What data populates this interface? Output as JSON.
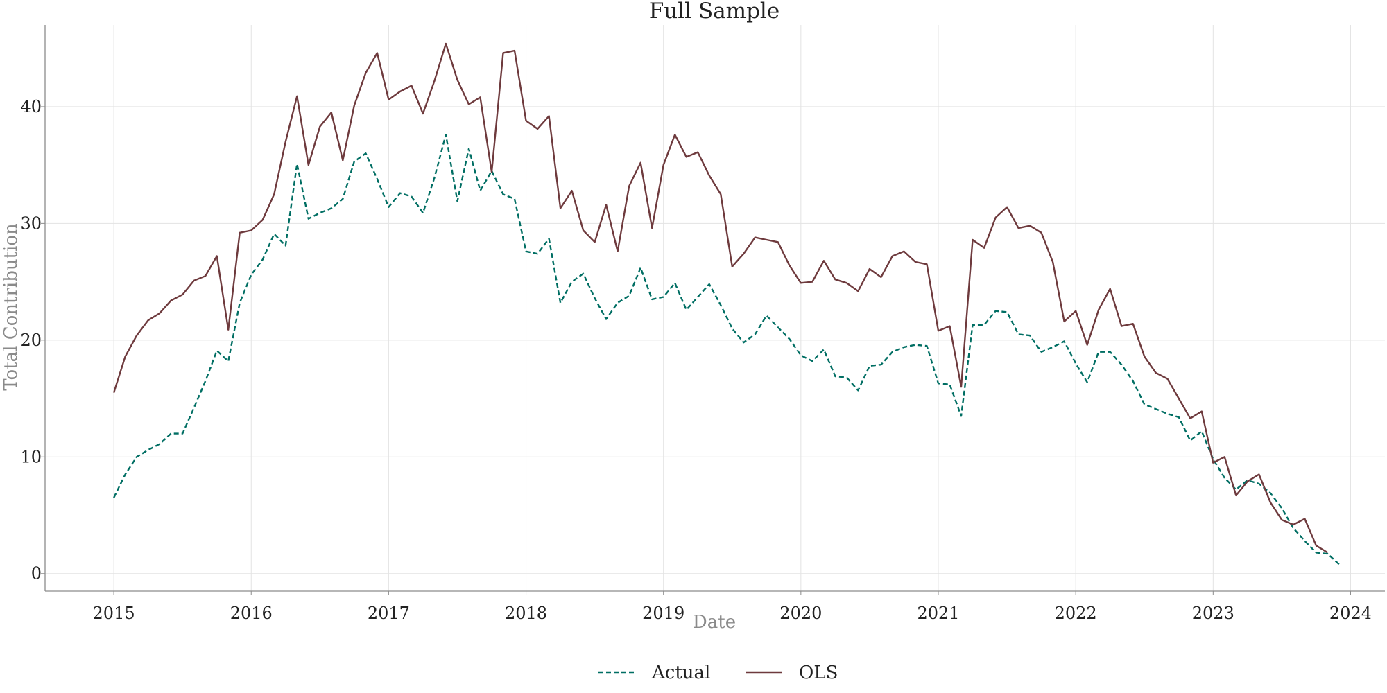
{
  "chart_data": {
    "type": "line",
    "title": "Full Sample",
    "xlabel": "Date",
    "ylabel": "Total Contribution",
    "xlim": [
      "2014-07-01",
      "2024-04-01"
    ],
    "ylim": [
      -1.5,
      47
    ],
    "x_ticks": [
      "2015",
      "2016",
      "2017",
      "2018",
      "2019",
      "2020",
      "2021",
      "2022",
      "2023",
      "2024"
    ],
    "y_ticks": [
      0,
      10,
      20,
      30,
      40
    ],
    "grid": true,
    "legend_position": "bottom-center",
    "start_month": "2015-01",
    "series": [
      {
        "name": "Actual",
        "color": "#006e63",
        "style": "dashed",
        "values": [
          6.5,
          8.5,
          10.0,
          10.6,
          11.1,
          12.0,
          12.0,
          14.2,
          16.5,
          19.1,
          18.2,
          23.2,
          25.6,
          26.9,
          29.1,
          28.1,
          35.1,
          30.4,
          30.9,
          31.3,
          32.1,
          35.3,
          36.0,
          33.8,
          31.4,
          32.6,
          32.3,
          30.9,
          33.9,
          37.6,
          31.9,
          36.4,
          32.8,
          34.5,
          32.5,
          32.1,
          27.6,
          27.4,
          28.7,
          23.2,
          25.0,
          25.7,
          23.6,
          21.8,
          23.2,
          23.8,
          26.2,
          23.5,
          23.7,
          24.9,
          22.6,
          23.7,
          24.8,
          23.0,
          21.0,
          19.8,
          20.5,
          22.1,
          21.1,
          20.1,
          18.7,
          18.2,
          19.2,
          16.9,
          16.8,
          15.7,
          17.8,
          17.9,
          19.0,
          19.4,
          19.6,
          19.5,
          16.3,
          16.2,
          13.5,
          21.3,
          21.3,
          22.5,
          22.4,
          20.5,
          20.4,
          19.0,
          19.4,
          19.9,
          18.0,
          16.4,
          19.0,
          19.0,
          17.9,
          16.5,
          14.5,
          14.1,
          13.7,
          13.4,
          11.4,
          12.2,
          9.8,
          8.2,
          7.2,
          8.0,
          7.7,
          6.9,
          5.6,
          3.9,
          2.8,
          1.8,
          1.7,
          0.8
        ]
      },
      {
        "name": "OLS",
        "color": "#6e3a3d",
        "style": "solid",
        "values": [
          15.5,
          18.6,
          20.4,
          21.7,
          22.3,
          23.4,
          23.9,
          25.1,
          25.5,
          27.2,
          20.9,
          29.2,
          29.4,
          30.3,
          32.5,
          37.0,
          40.9,
          35.0,
          38.3,
          39.5,
          35.4,
          40.1,
          42.9,
          44.6,
          40.6,
          41.3,
          41.8,
          39.4,
          42.2,
          45.4,
          42.3,
          40.2,
          40.8,
          34.4,
          44.6,
          44.8,
          38.8,
          38.1,
          39.2,
          31.3,
          32.8,
          29.4,
          28.4,
          31.6,
          27.6,
          33.2,
          35.2,
          29.6,
          35.0,
          37.6,
          35.7,
          36.1,
          34.1,
          32.5,
          26.3,
          27.4,
          28.8,
          28.6,
          28.4,
          26.4,
          24.9,
          25.0,
          26.8,
          25.2,
          24.9,
          24.2,
          26.1,
          25.4,
          27.2,
          27.6,
          26.7,
          26.5,
          20.8,
          21.2,
          16.0,
          28.6,
          27.9,
          30.5,
          31.4,
          29.6,
          29.8,
          29.2,
          26.7,
          21.6,
          22.5,
          19.6,
          22.6,
          24.4,
          21.2,
          21.4,
          18.6,
          17.2,
          16.7,
          15.0,
          13.3,
          13.9,
          9.5,
          10.0,
          6.7,
          7.9,
          8.5,
          6.1,
          4.6,
          4.2,
          4.7,
          2.4,
          1.8
        ]
      }
    ]
  }
}
